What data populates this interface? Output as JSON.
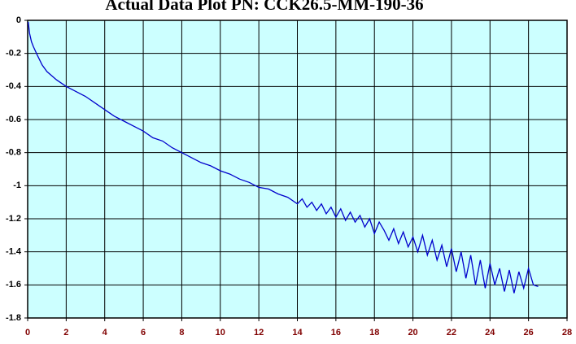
{
  "chart_data": {
    "type": "line",
    "title": "Actual Data Plot PN: CCK26.5-MM-190-36",
    "x": [
      0.03,
      0.1,
      0.2,
      0.3,
      0.5,
      0.75,
      1,
      1.5,
      2,
      2.5,
      3,
      3.5,
      4,
      4.5,
      5,
      5.5,
      6,
      6.5,
      7,
      7.5,
      8,
      8.5,
      9,
      9.5,
      10,
      10.5,
      11,
      11.5,
      12,
      12.5,
      13,
      13.5,
      14,
      14.25,
      14.5,
      14.75,
      15,
      15.25,
      15.5,
      15.75,
      16,
      16.25,
      16.5,
      16.75,
      17,
      17.25,
      17.5,
      17.75,
      18,
      18.25,
      18.5,
      18.75,
      19,
      19.25,
      19.5,
      19.75,
      20,
      20.25,
      20.5,
      20.75,
      21,
      21.25,
      21.5,
      21.75,
      22,
      22.25,
      22.5,
      22.75,
      23,
      23.25,
      23.5,
      23.75,
      24,
      24.25,
      24.5,
      24.75,
      25,
      25.25,
      25.5,
      25.75,
      26,
      26.25,
      26.5
    ],
    "series": [
      {
        "color": "#0000cc",
        "values": [
          -0.01,
          -0.08,
          -0.13,
          -0.16,
          -0.21,
          -0.27,
          -0.31,
          -0.36,
          -0.4,
          -0.43,
          -0.46,
          -0.5,
          -0.54,
          -0.58,
          -0.61,
          -0.64,
          -0.67,
          -0.71,
          -0.73,
          -0.77,
          -0.8,
          -0.83,
          -0.86,
          -0.88,
          -0.91,
          -0.93,
          -0.96,
          -0.98,
          -1.01,
          -1.02,
          -1.05,
          -1.07,
          -1.11,
          -1.08,
          -1.13,
          -1.1,
          -1.15,
          -1.11,
          -1.17,
          -1.13,
          -1.19,
          -1.14,
          -1.21,
          -1.16,
          -1.22,
          -1.18,
          -1.25,
          -1.2,
          -1.29,
          -1.22,
          -1.27,
          -1.33,
          -1.26,
          -1.35,
          -1.28,
          -1.37,
          -1.31,
          -1.4,
          -1.3,
          -1.42,
          -1.33,
          -1.45,
          -1.36,
          -1.49,
          -1.38,
          -1.52,
          -1.4,
          -1.56,
          -1.42,
          -1.6,
          -1.45,
          -1.62,
          -1.47,
          -1.6,
          -1.5,
          -1.64,
          -1.51,
          -1.65,
          -1.52,
          -1.62,
          -1.5,
          -1.6,
          -1.61
        ]
      }
    ],
    "xlim": [
      0,
      28
    ],
    "xticks": [
      0,
      2,
      4,
      6,
      8,
      10,
      12,
      14,
      16,
      18,
      20,
      22,
      24,
      26,
      28
    ],
    "ylim": [
      -1.8,
      0
    ],
    "yticks": [
      0,
      -0.2,
      -0.4,
      -0.6,
      -0.8,
      -1,
      -1.2,
      -1.4,
      -1.6,
      -1.8
    ],
    "grid": true
  }
}
